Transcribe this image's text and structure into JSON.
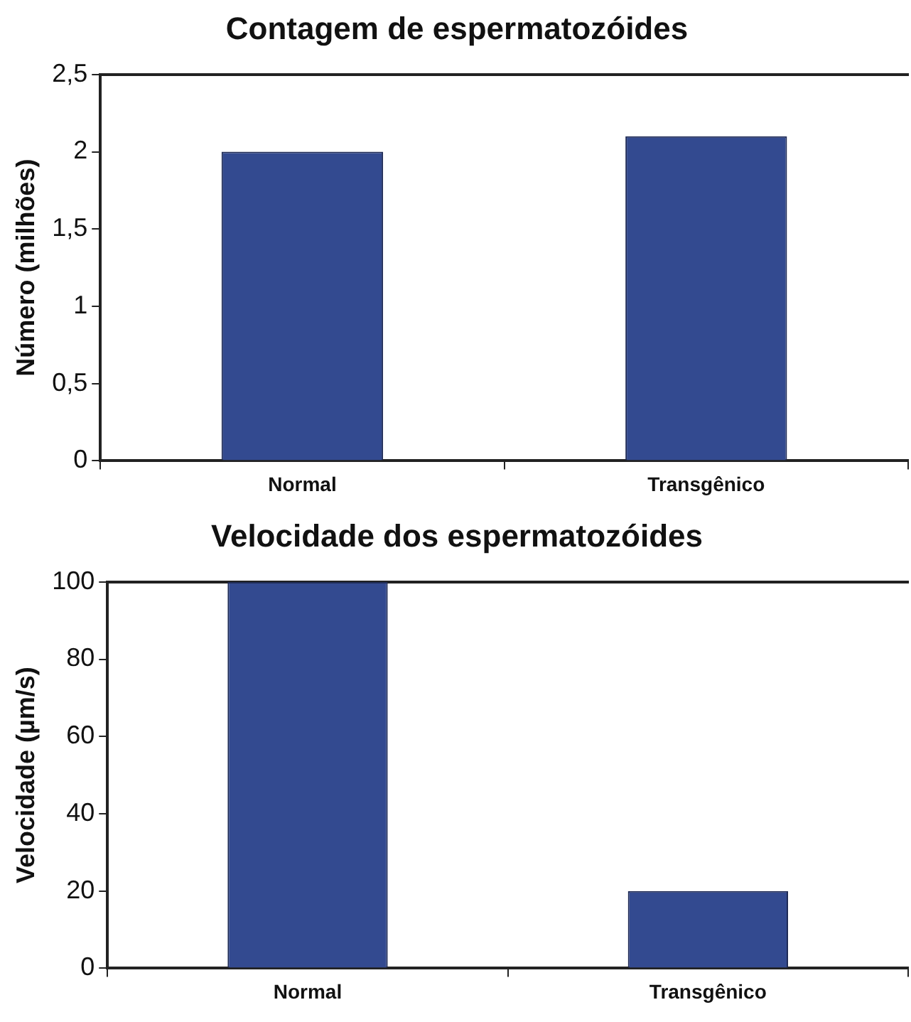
{
  "chart_data": [
    {
      "type": "bar",
      "title": "Contagem de espermatozóides",
      "ylabel": "Número (milhões)",
      "categories": [
        "Normal",
        "Transgênico"
      ],
      "values": [
        2,
        2.1
      ],
      "color": "#334a90",
      "ylim": [
        0,
        2.5
      ],
      "yticks": [
        0,
        {
          "value": 0.5,
          "label": "0,5"
        },
        1,
        {
          "value": 1.5,
          "label": "1,5"
        },
        2,
        {
          "value": 2.5,
          "label": "2,5"
        }
      ]
    },
    {
      "type": "bar",
      "title": "Velocidade dos espermatozóides",
      "ylabel": "Velocidade (µm/s)",
      "categories": [
        "Normal",
        "Transgênico"
      ],
      "values": [
        100,
        20
      ],
      "color": "#334a90",
      "ylim": [
        0,
        100
      ],
      "yticks": [
        0,
        20,
        40,
        60,
        80,
        100
      ]
    }
  ]
}
